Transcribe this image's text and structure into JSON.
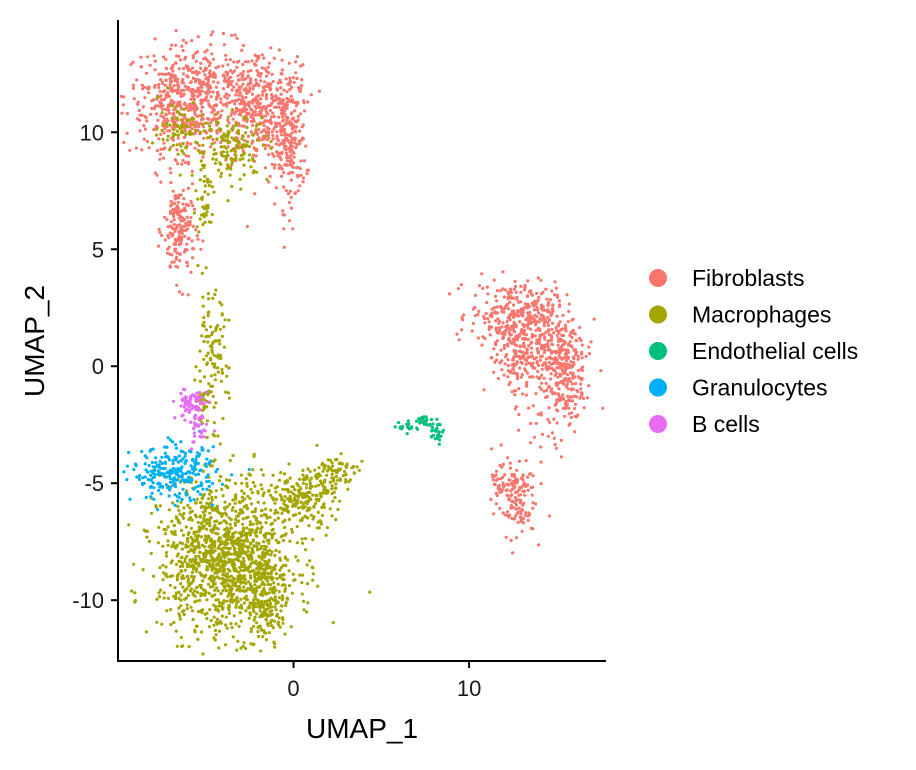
{
  "chart_data": {
    "type": "scatter",
    "xlabel": "UMAP_1",
    "ylabel": "UMAP_2",
    "xlim": [
      -10,
      17.8
    ],
    "ylim": [
      -12.6,
      14.8
    ],
    "xticks": [
      0,
      10
    ],
    "xtick_labels": [
      "0",
      "10"
    ],
    "yticks": [
      -10,
      -5,
      0,
      5,
      10
    ],
    "ytick_labels": [
      "-10",
      "-5",
      "0",
      "5",
      "10"
    ],
    "grid": false,
    "legend_position": "right",
    "series": [
      {
        "name": "Fibroblasts",
        "color": "#F8766D",
        "clusters": [
          {
            "x": -5.3,
            "y": 11.6,
            "sx": 2.2,
            "sy": 1.1,
            "n": 520
          },
          {
            "x": -2.0,
            "y": 10.8,
            "sx": 1.1,
            "sy": 1.2,
            "n": 300
          },
          {
            "x": -0.3,
            "y": 9.8,
            "sx": 0.5,
            "sy": 1.5,
            "n": 220
          },
          {
            "x": -6.5,
            "y": 10.8,
            "sx": 1.0,
            "sy": 0.9,
            "n": 150
          },
          {
            "x": -6.5,
            "y": 5.8,
            "sx": 0.45,
            "sy": 1.1,
            "n": 180
          },
          {
            "x": 12.5,
            "y": 2.2,
            "sx": 1.2,
            "sy": 0.7,
            "n": 260
          },
          {
            "x": 14.5,
            "y": 0.8,
            "sx": 1.1,
            "sy": 1.2,
            "n": 320
          },
          {
            "x": 15.5,
            "y": -0.8,
            "sx": 0.5,
            "sy": 0.9,
            "n": 140
          },
          {
            "x": 12.5,
            "y": 0.3,
            "sx": 0.6,
            "sy": 0.6,
            "n": 90
          },
          {
            "x": 12.6,
            "y": -5.6,
            "sx": 0.6,
            "sy": 0.8,
            "n": 140
          },
          {
            "x": 11.7,
            "y": -4.8,
            "sx": 0.2,
            "sy": 0.6,
            "n": 25
          },
          {
            "x": 14.3,
            "y": -3.2,
            "sx": 0.4,
            "sy": 0.4,
            "n": 12
          }
        ]
      },
      {
        "name": "Macrophages",
        "color": "#A3A500",
        "clusters": [
          {
            "x": -3.8,
            "y": -8.2,
            "sx": 1.9,
            "sy": 1.6,
            "n": 1300
          },
          {
            "x": -1.5,
            "y": -10.0,
            "sx": 0.6,
            "sy": 0.8,
            "n": 160
          },
          {
            "x": 0.5,
            "y": -5.6,
            "sx": 0.9,
            "sy": 0.6,
            "n": 180
          },
          {
            "x": 2.2,
            "y": -4.6,
            "sx": 0.7,
            "sy": 0.4,
            "n": 90
          },
          {
            "x": -4.7,
            "y": 0.3,
            "sx": 0.5,
            "sy": 1.4,
            "n": 110
          },
          {
            "x": -5.1,
            "y": -1.5,
            "sx": 0.2,
            "sy": 0.5,
            "n": 30
          },
          {
            "x": -3.4,
            "y": 9.4,
            "sx": 1.0,
            "sy": 0.7,
            "n": 140
          },
          {
            "x": -6.5,
            "y": 10.2,
            "sx": 0.6,
            "sy": 0.6,
            "n": 70
          },
          {
            "x": -5.0,
            "y": 7.3,
            "sx": 0.3,
            "sy": 0.9,
            "n": 50
          }
        ]
      },
      {
        "name": "Endothelial cells",
        "color": "#00BF7D",
        "clusters": [
          {
            "x": 6.6,
            "y": -2.6,
            "sx": 0.3,
            "sy": 0.12,
            "n": 22
          },
          {
            "x": 7.4,
            "y": -2.35,
            "sx": 0.25,
            "sy": 0.12,
            "n": 20
          },
          {
            "x": 8.2,
            "y": -2.9,
            "sx": 0.22,
            "sy": 0.3,
            "n": 30
          }
        ]
      },
      {
        "name": "Granulocytes",
        "color": "#00B0F6",
        "clusters": [
          {
            "x": -6.8,
            "y": -4.6,
            "sx": 1.2,
            "sy": 0.55,
            "n": 260
          }
        ]
      },
      {
        "name": "B cells",
        "color": "#E76BF3",
        "clusters": [
          {
            "x": -5.8,
            "y": -1.6,
            "sx": 0.45,
            "sy": 0.35,
            "n": 75
          },
          {
            "x": -5.4,
            "y": -2.8,
            "sx": 0.25,
            "sy": 0.4,
            "n": 30
          }
        ]
      }
    ]
  }
}
